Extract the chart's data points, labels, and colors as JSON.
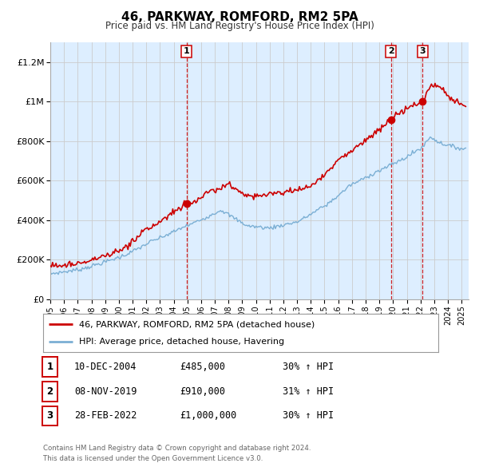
{
  "title": "46, PARKWAY, ROMFORD, RM2 5PA",
  "subtitle": "Price paid vs. HM Land Registry's House Price Index (HPI)",
  "legend_label_red": "46, PARKWAY, ROMFORD, RM2 5PA (detached house)",
  "legend_label_blue": "HPI: Average price, detached house, Havering",
  "footer_line1": "Contains HM Land Registry data © Crown copyright and database right 2024.",
  "footer_line2": "This data is licensed under the Open Government Licence v3.0.",
  "sales": [
    {
      "num": 1,
      "date_val": 2004.94,
      "price": 485000,
      "label": "10-DEC-2004",
      "price_str": "£485,000",
      "pct_str": "30% ↑ HPI"
    },
    {
      "num": 2,
      "date_val": 2019.85,
      "price": 910000,
      "label": "08-NOV-2019",
      "price_str": "£910,000",
      "pct_str": "31% ↑ HPI"
    },
    {
      "num": 3,
      "date_val": 2022.16,
      "price": 1000000,
      "label": "28-FEB-2022",
      "price_str": "£1,000,000",
      "pct_str": "30% ↑ HPI"
    }
  ],
  "ylim": [
    0,
    1300000
  ],
  "xlim_start": 1995.0,
  "xlim_end": 2025.5,
  "yticks": [
    0,
    200000,
    400000,
    600000,
    800000,
    1000000,
    1200000
  ],
  "ytick_labels": [
    "£0",
    "£200K",
    "£400K",
    "£600K",
    "£800K",
    "£1M",
    "£1.2M"
  ],
  "xticks": [
    1995,
    1996,
    1997,
    1998,
    1999,
    2000,
    2001,
    2002,
    2003,
    2004,
    2005,
    2006,
    2007,
    2008,
    2009,
    2010,
    2011,
    2012,
    2013,
    2014,
    2015,
    2016,
    2017,
    2018,
    2019,
    2020,
    2021,
    2022,
    2023,
    2024,
    2025
  ],
  "red_color": "#cc0000",
  "blue_color": "#7bafd4",
  "grid_color": "#cccccc",
  "bg_plot": "#ddeeff",
  "bg_fig": "#ffffff",
  "vline_color": "#cc0000",
  "red_noise_seed": 5,
  "blue_noise_seed": 7
}
